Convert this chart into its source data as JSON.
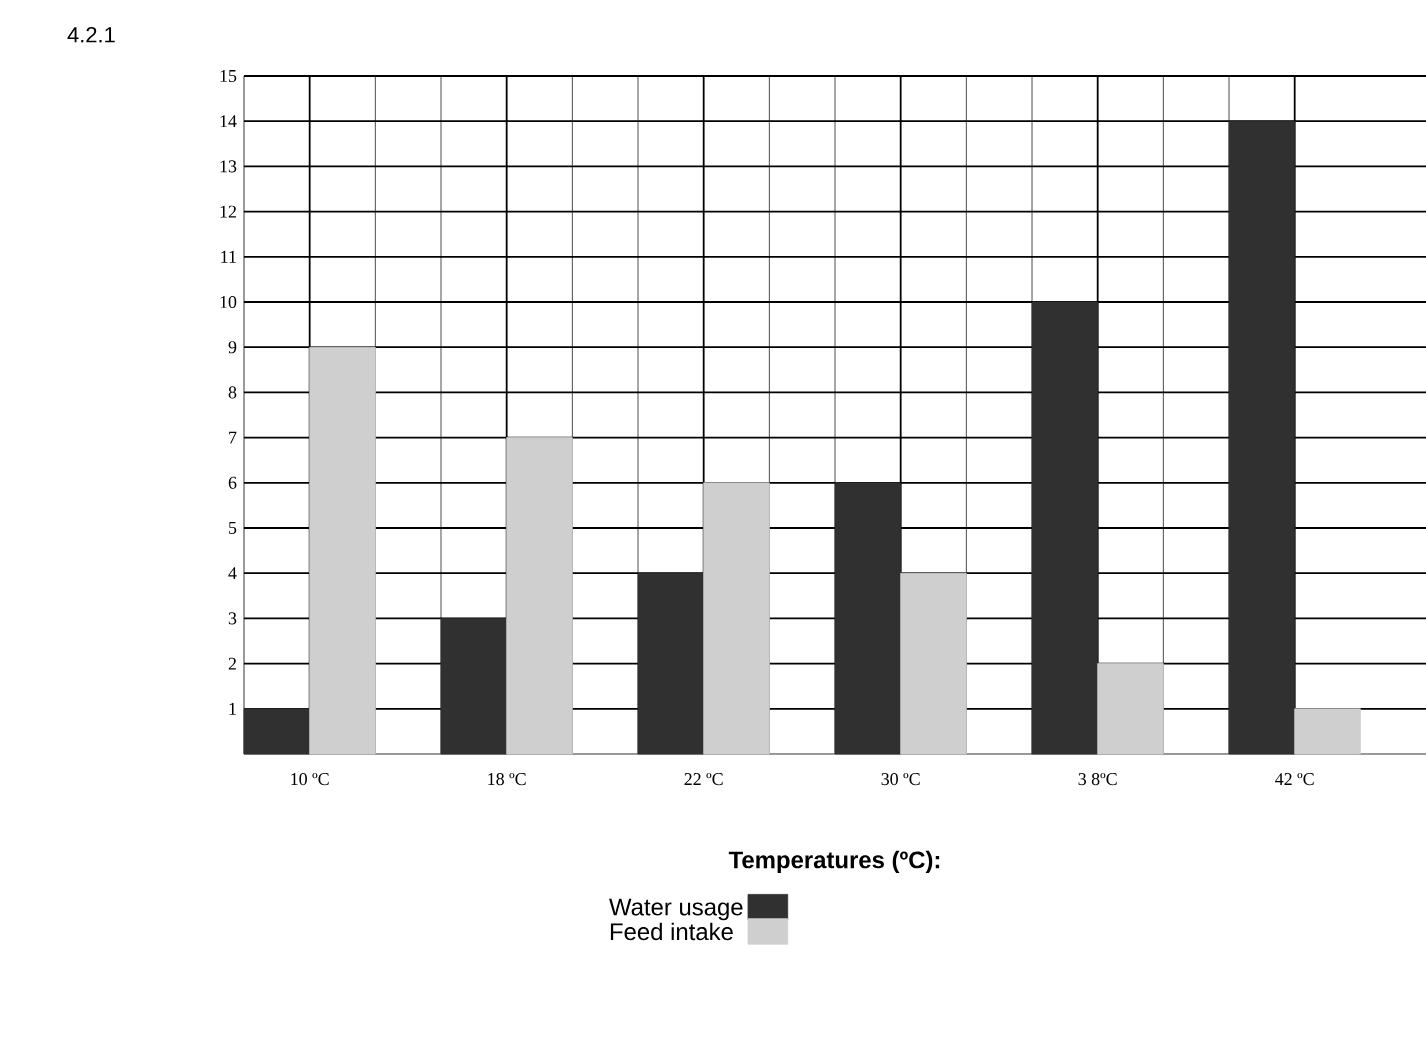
{
  "chart_data": {
    "type": "bar",
    "xlabel": "Temperatures (ºC):",
    "annotations": [
      "4.2.1"
    ],
    "categories": [
      "10 ºC",
      "18 ºC",
      "22 ºC",
      "30 ºC",
      "3 8ºC",
      "42 ºC"
    ],
    "series": [
      {
        "name": "Water usage",
        "color": "#303030",
        "values": [
          1,
          3,
          4,
          6,
          10,
          14
        ]
      },
      {
        "name": "Feed intake",
        "color": "#cfcfcf",
        "values": [
          9,
          7,
          6,
          4,
          2,
          1
        ]
      }
    ],
    "ylim": [
      0,
      15
    ],
    "yticks": [
      1,
      2,
      3,
      4,
      5,
      6,
      7,
      8,
      9,
      10,
      11,
      12,
      13,
      14,
      15
    ],
    "grid": true,
    "legend": "bottom"
  }
}
